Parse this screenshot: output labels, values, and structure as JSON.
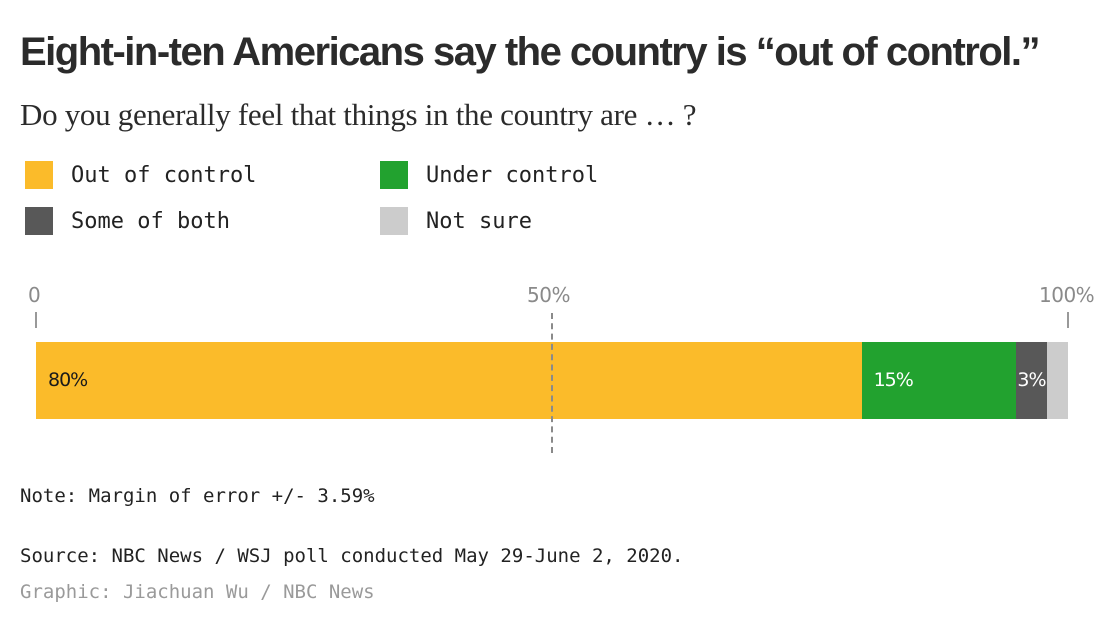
{
  "title": "Eight-in-ten Americans say the country is “out of control.”",
  "subtitle": "Do you generally feel that things in the country are … ?",
  "legend": [
    {
      "label": "Out of control",
      "color": "#fbbb2a"
    },
    {
      "label": "Under control",
      "color": "#22a22f"
    },
    {
      "label": "Some of both",
      "color": "#585858"
    },
    {
      "label": "Not sure",
      "color": "#cccccc"
    }
  ],
  "axis": {
    "ticks": [
      "0",
      "50%",
      "100%"
    ]
  },
  "chart_data": {
    "type": "bar",
    "orientation": "horizontal-stacked",
    "title": "Eight-in-ten Americans say the country is “out of control.”",
    "subtitle": "Do you generally feel that things in the country are … ?",
    "xlim": [
      0,
      100
    ],
    "x_ticks": [
      "0",
      "50%",
      "100%"
    ],
    "reference_line": 50,
    "legend_position": "top",
    "series": [
      {
        "name": "Out of control",
        "value": 80,
        "label": "80%",
        "color": "#fbbb2a",
        "label_color": "#1a1a1a"
      },
      {
        "name": "Under control",
        "value": 15,
        "label": "15%",
        "color": "#22a22f",
        "label_color": "#ffffff"
      },
      {
        "name": "Some of both",
        "value": 3,
        "label": "3%",
        "color": "#585858",
        "label_color": "#ffffff"
      },
      {
        "name": "Not sure",
        "value": 2,
        "label": "",
        "color": "#cccccc",
        "label_color": "#1a1a1a"
      }
    ]
  },
  "note": "Note: Margin of error +/- 3.59%",
  "source": "Source: NBC News / WSJ poll conducted May 29-June 2, 2020.",
  "credit": "Graphic: Jiachuan Wu / NBC News"
}
